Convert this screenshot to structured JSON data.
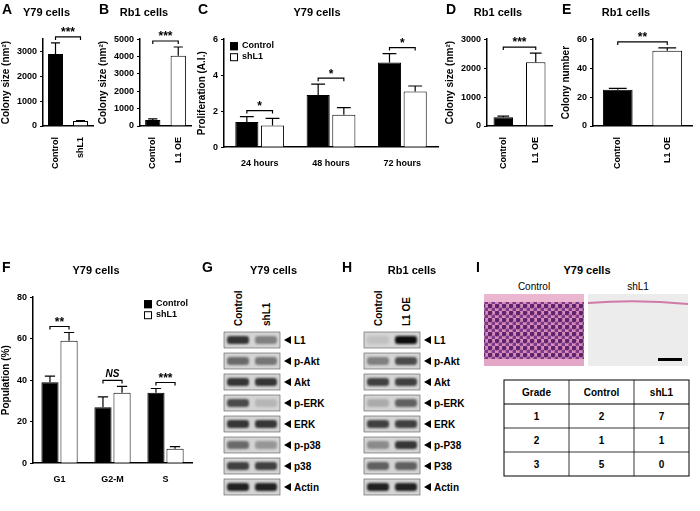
{
  "chart_data": [
    {
      "panel": "A",
      "type": "bar",
      "title": "Y79 cells",
      "y_label": "Colony size (nm²)",
      "categories": [
        "Control",
        "shL1"
      ],
      "values": [
        2900,
        200
      ],
      "errors": [
        450,
        20
      ],
      "colors": [
        "#000000",
        "#ffffff"
      ],
      "ylim": [
        0,
        3500
      ],
      "yticks": [
        0,
        1000,
        2000,
        3000
      ],
      "grid": false,
      "significance": [
        "***"
      ]
    },
    {
      "panel": "B",
      "type": "bar",
      "title": "Rb1 cells",
      "y_label": "Colony size (nm²)",
      "categories": [
        "Control",
        "L1 OE"
      ],
      "values": [
        350,
        4050
      ],
      "errors": [
        60,
        500
      ],
      "colors": [
        "#000000",
        "#ffffff"
      ],
      "ylim": [
        0,
        5000
      ],
      "yticks": [
        0,
        1000,
        2000,
        3000,
        4000,
        5000
      ],
      "grid": false,
      "significance": [
        "***"
      ]
    },
    {
      "panel": "C",
      "type": "bar",
      "title": "Y79 cells",
      "y_label": "Proliferation (A.I.)",
      "categories": [
        "24 hours",
        "48 hours",
        "72 hours"
      ],
      "series": [
        {
          "name": "Control",
          "color": "#000000",
          "values": [
            1.4,
            2.9,
            4.7
          ],
          "errors": [
            0.3,
            0.6,
            0.5
          ]
        },
        {
          "name": "shL1",
          "color": "#ffffff",
          "values": [
            1.2,
            1.8,
            3.1
          ],
          "errors": [
            0.4,
            0.4,
            0.3
          ]
        }
      ],
      "ylim": [
        0,
        6
      ],
      "yticks": [
        0,
        2,
        4,
        6
      ],
      "grid": false,
      "legend": "upper left",
      "significance": [
        "*",
        "*",
        "*"
      ]
    },
    {
      "panel": "D",
      "type": "bar",
      "title": "Rb1 cells",
      "y_label": "Colony size (nm²)",
      "categories": [
        "Control",
        "L1 OE"
      ],
      "values": [
        300,
        2200
      ],
      "errors": [
        40,
        320
      ],
      "colors": [
        "#000000",
        "#ffffff"
      ],
      "ylim": [
        0,
        3000
      ],
      "yticks": [
        0,
        1000,
        2000,
        3000
      ],
      "grid": false,
      "significance": [
        "***"
      ]
    },
    {
      "panel": "E",
      "type": "bar",
      "title": "Rb1 cells",
      "y_label": "Colony number",
      "categories": [
        "Control",
        "L1 OE"
      ],
      "values": [
        25,
        52
      ],
      "errors": [
        1,
        2
      ],
      "colors": [
        "#000000",
        "#ffffff"
      ],
      "ylim": [
        0,
        60
      ],
      "yticks": [
        0,
        20,
        40,
        60
      ],
      "grid": false,
      "significance": [
        "**"
      ]
    },
    {
      "panel": "F",
      "type": "bar",
      "title": "Y79 cells",
      "y_label": "Population (%)",
      "categories": [
        "G1",
        "G2-M",
        "S"
      ],
      "series": [
        {
          "name": "Control",
          "color": "#000000",
          "values": [
            39,
            27,
            34
          ],
          "errors": [
            3,
            5,
            2
          ]
        },
        {
          "name": "shL1",
          "color": "#ffffff",
          "values": [
            59,
            34,
            7
          ],
          "errors": [
            4,
            3,
            1
          ]
        }
      ],
      "ylim": [
        0,
        80
      ],
      "yticks": [
        0,
        20,
        40,
        60,
        80
      ],
      "grid": false,
      "legend": "upper right",
      "significance": [
        "**",
        "NS",
        "***"
      ]
    }
  ],
  "blots": [
    {
      "panel": "G",
      "title": "Y79 cells",
      "lanes": [
        "Control",
        "shL1"
      ],
      "bands": [
        {
          "name": "L1",
          "intensity": [
            0.8,
            0.45
          ]
        },
        {
          "name": "p-Akt",
          "intensity": [
            0.55,
            0.5
          ]
        },
        {
          "name": "Akt",
          "intensity": [
            0.8,
            0.8
          ]
        },
        {
          "name": "p-ERK",
          "intensity": [
            0.7,
            0.2
          ]
        },
        {
          "name": "ERK",
          "intensity": [
            0.8,
            0.8
          ]
        },
        {
          "name": "p-p38",
          "intensity": [
            0.55,
            0.35
          ]
        },
        {
          "name": "p38",
          "intensity": [
            0.75,
            0.75
          ]
        },
        {
          "name": "Actin",
          "intensity": [
            0.9,
            0.9
          ]
        }
      ]
    },
    {
      "panel": "H",
      "title": "Rb1 cells",
      "lanes": [
        "Control",
        "L1 OE"
      ],
      "bands": [
        {
          "name": "L1",
          "intensity": [
            0.15,
            1.0
          ]
        },
        {
          "name": "p-Akt",
          "intensity": [
            0.45,
            0.7
          ]
        },
        {
          "name": "Akt",
          "intensity": [
            0.75,
            0.75
          ]
        },
        {
          "name": "p-ERK",
          "intensity": [
            0.25,
            0.6
          ]
        },
        {
          "name": "ERK",
          "intensity": [
            0.75,
            0.75
          ]
        },
        {
          "name": "p-P38",
          "intensity": [
            0.4,
            0.8
          ]
        },
        {
          "name": "P38",
          "intensity": [
            0.6,
            0.6
          ]
        },
        {
          "name": "Actin",
          "intensity": [
            0.9,
            0.9
          ]
        }
      ]
    }
  ],
  "histology": {
    "panel": "I",
    "title": "Y79 cells",
    "images": [
      "Control",
      "shL1"
    ],
    "table": {
      "header": [
        "Grade",
        "Control",
        "shL1"
      ],
      "rows": [
        [
          1,
          2,
          7
        ],
        [
          2,
          1,
          1
        ],
        [
          3,
          5,
          0
        ]
      ]
    }
  }
}
